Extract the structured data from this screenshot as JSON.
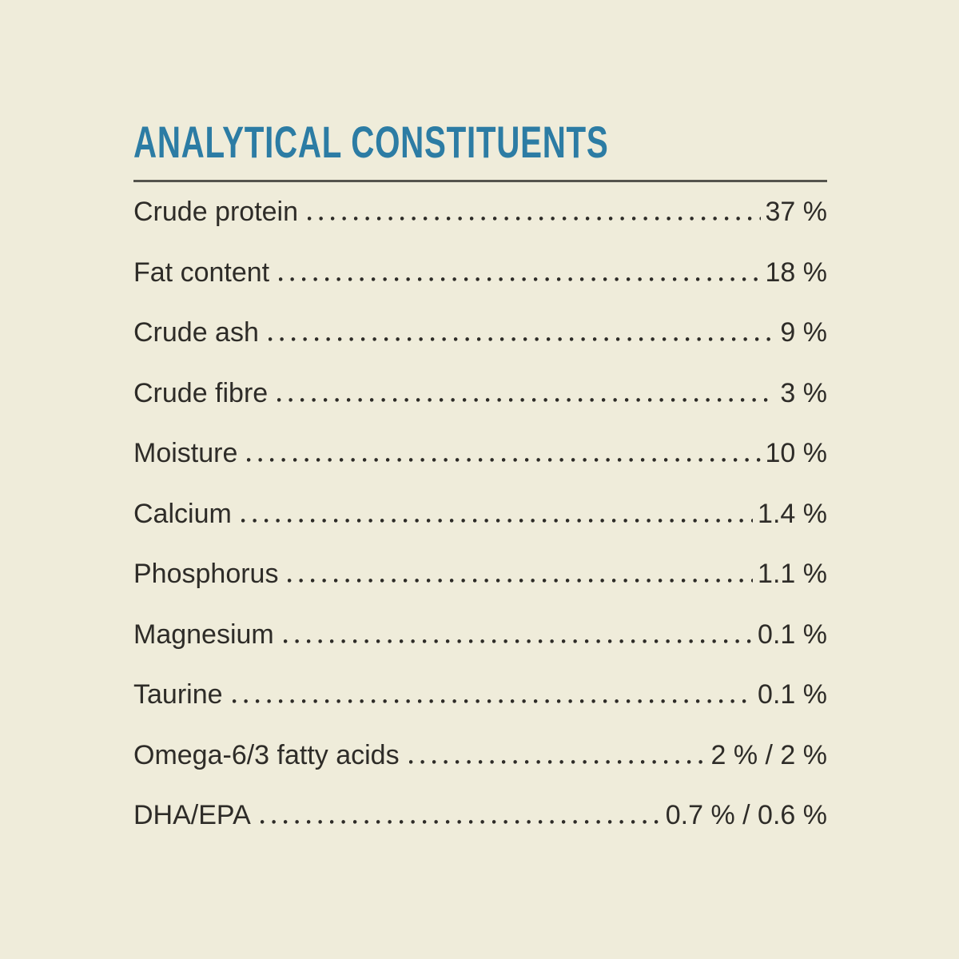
{
  "page": {
    "background_color": "#EFECDA",
    "accent_color": "#2C7CA4",
    "text_color": "#2E2C28",
    "divider_color": "#55544D"
  },
  "section": {
    "title": "ANALYTICAL CONSTITUENTS",
    "rows": [
      {
        "label": "Crude protein",
        "value": "37 %"
      },
      {
        "label": "Fat content",
        "value": "18 %"
      },
      {
        "label": "Crude ash",
        "value": "9 %"
      },
      {
        "label": "Crude fibre",
        "value": "3 %"
      },
      {
        "label": "Moisture",
        "value": "10 %"
      },
      {
        "label": "Calcium",
        "value": "1.4 %"
      },
      {
        "label": "Phosphorus",
        "value": "1.1 %"
      },
      {
        "label": "Magnesium",
        "value": "0.1 %"
      },
      {
        "label": "Taurine",
        "value": "0.1 %"
      },
      {
        "label": "Omega-6/3 fatty acids",
        "value": "2 % / 2 %"
      },
      {
        "label": "DHA/EPA",
        "value": "0.7 % / 0.6 %"
      }
    ]
  },
  "chart_data": {
    "type": "table",
    "title": "ANALYTICAL CONSTITUENTS",
    "columns": [
      "Constituent",
      "Amount"
    ],
    "rows": [
      [
        "Crude protein",
        "37 %"
      ],
      [
        "Fat content",
        "18 %"
      ],
      [
        "Crude ash",
        "9 %"
      ],
      [
        "Crude fibre",
        "3 %"
      ],
      [
        "Moisture",
        "10 %"
      ],
      [
        "Calcium",
        "1.4 %"
      ],
      [
        "Phosphorus",
        "1.1 %"
      ],
      [
        "Magnesium",
        "0.1 %"
      ],
      [
        "Taurine",
        "0.1 %"
      ],
      [
        "Omega-6/3 fatty acids",
        "2 % / 2 %"
      ],
      [
        "DHA/EPA",
        "0.7 % / 0.6 %"
      ]
    ]
  }
}
